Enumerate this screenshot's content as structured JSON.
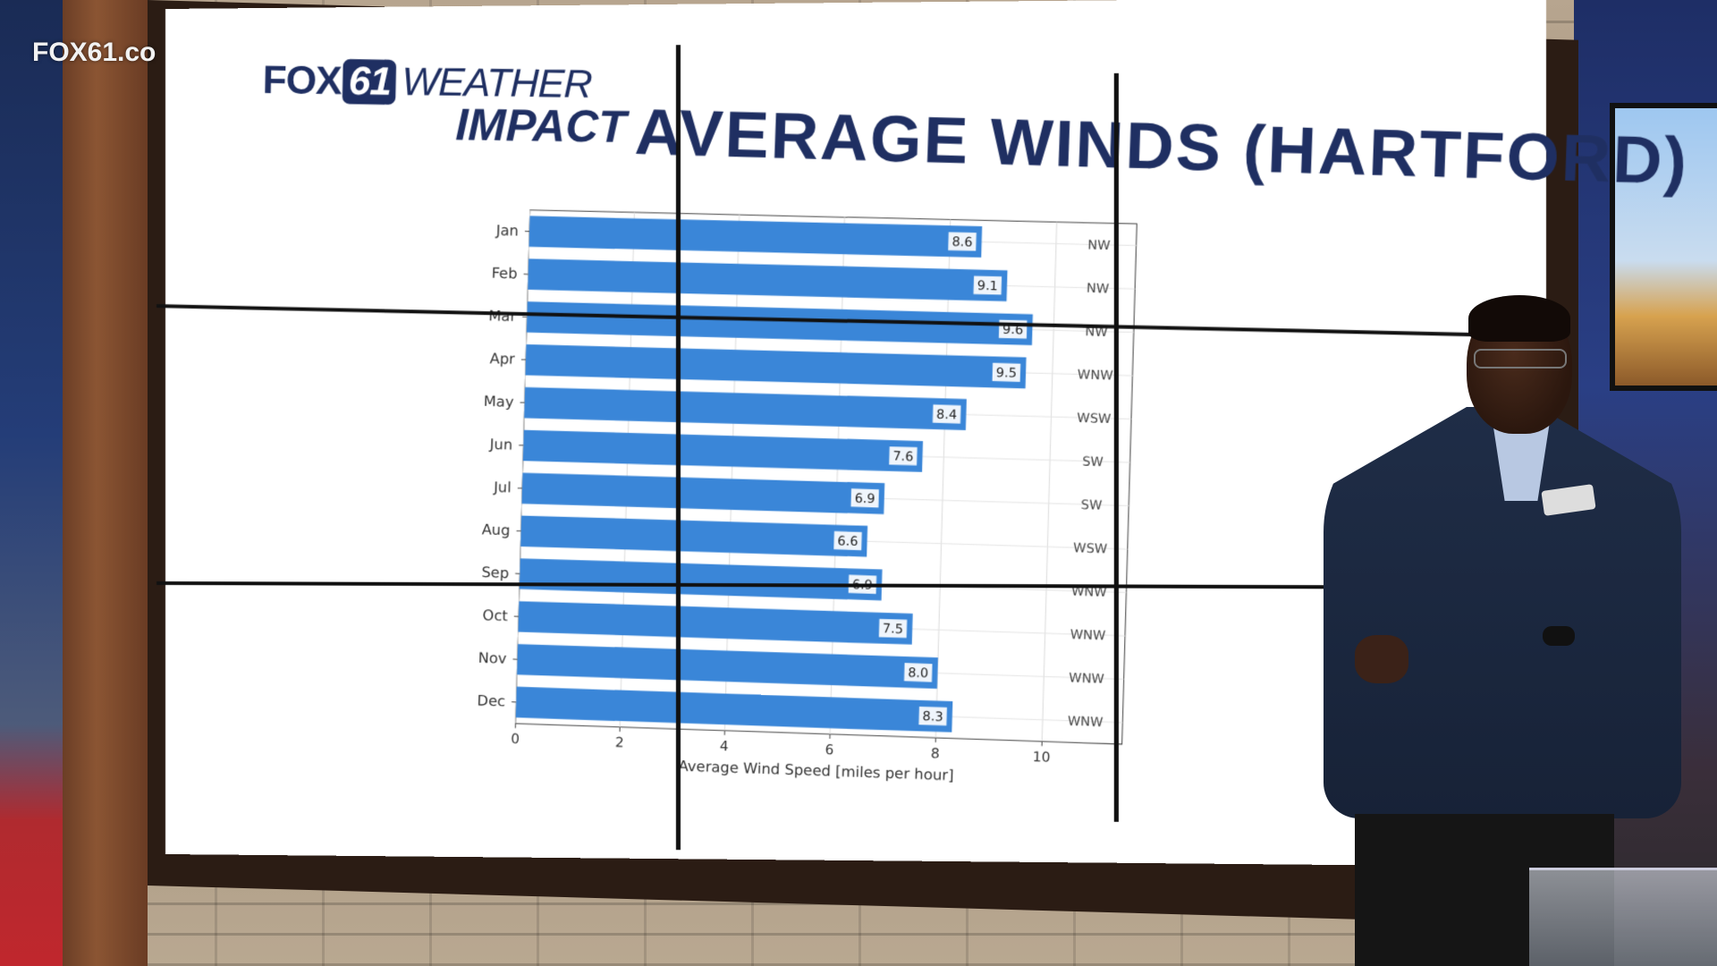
{
  "broadcast": {
    "channel_watermark": "FOX61.co"
  },
  "logo": {
    "fox": "FOX",
    "number": "61",
    "weather": "WEATHER",
    "impact": "IMPACT"
  },
  "graphic": {
    "title": "AVERAGE WINDS (HARTFORD)"
  },
  "chart_data": {
    "type": "bar",
    "orientation": "horizontal",
    "title": "AVERAGE WINDS (HARTFORD)",
    "xlabel": "Average Wind Speed [miles per hour]",
    "ylabel": "",
    "xlim": [
      0,
      11.5
    ],
    "xticks": [
      "0",
      "2",
      "4",
      "6",
      "8",
      "10"
    ],
    "grid": true,
    "bar_color": "#3a86d8",
    "categories": [
      "Jan",
      "Feb",
      "Mar",
      "Apr",
      "May",
      "Jun",
      "Jul",
      "Aug",
      "Sep",
      "Oct",
      "Nov",
      "Dec"
    ],
    "values": [
      8.6,
      9.1,
      9.6,
      9.5,
      8.4,
      7.6,
      6.9,
      6.6,
      6.9,
      7.5,
      8.0,
      8.3
    ],
    "value_labels": [
      "8.6",
      "9.1",
      "9.6",
      "9.5",
      "8.4",
      "7.6",
      "6.9",
      "6.6",
      "6.9",
      "7.5",
      "8.0",
      "8.3"
    ],
    "directions": [
      "NW",
      "NW",
      "NW",
      "WNW",
      "WSW",
      "SW",
      "SW",
      "WSW",
      "WNW",
      "WNW",
      "WNW",
      "WNW"
    ]
  }
}
